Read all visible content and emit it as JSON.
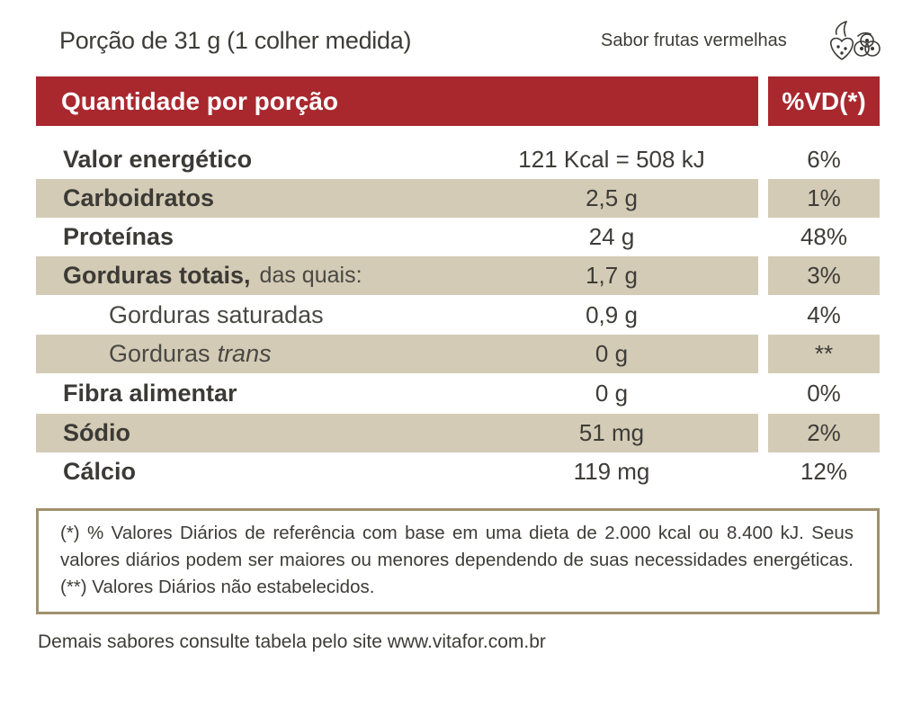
{
  "portion": "Porção de 31 g (1 colher medida)",
  "flavor": "Sabor frutas vermelhas",
  "icon": "red-fruits-icon",
  "colors": {
    "header": "#a8282e",
    "shade": "#d3cbb5",
    "border": "#a1906f",
    "text": "#3c3a36"
  },
  "header": {
    "title": "Quantidade por porção",
    "vd": "%VD(*)"
  },
  "rows": [
    {
      "name": "Valor energético",
      "amount": "121 Kcal = 508 kJ",
      "vd": "6%"
    },
    {
      "name": "Carboidratos",
      "amount": "2,5 g",
      "vd": "1%"
    },
    {
      "name": "Proteínas",
      "amount": "24 g",
      "vd": "48%"
    },
    {
      "name": "Gorduras totais,",
      "suffix": "das quais:",
      "amount": "1,7 g",
      "vd": "3%"
    },
    {
      "name": "Gorduras saturadas",
      "amount": "0,9 g",
      "vd": "4%"
    },
    {
      "name": "Gorduras",
      "italic": "trans",
      "amount": "0 g",
      "vd": "**"
    },
    {
      "name": "Fibra alimentar",
      "amount": "0 g",
      "vd": "0%"
    },
    {
      "name": "Sódio",
      "amount": "51 mg",
      "vd": "2%"
    },
    {
      "name": "Cálcio",
      "amount": "119 mg",
      "vd": "12%"
    }
  ],
  "footnote": "(*) % Valores Diários de referência com base em uma dieta de 2.000 kcal ou 8.400 kJ. Seus valores diários podem ser maiores ou menores dependendo de suas necessidades energéticas. (**) Valores Diários não estabelecidos.",
  "bottom_note": "Demais sabores consulte tabela pelo site www.vitafor.com.br"
}
